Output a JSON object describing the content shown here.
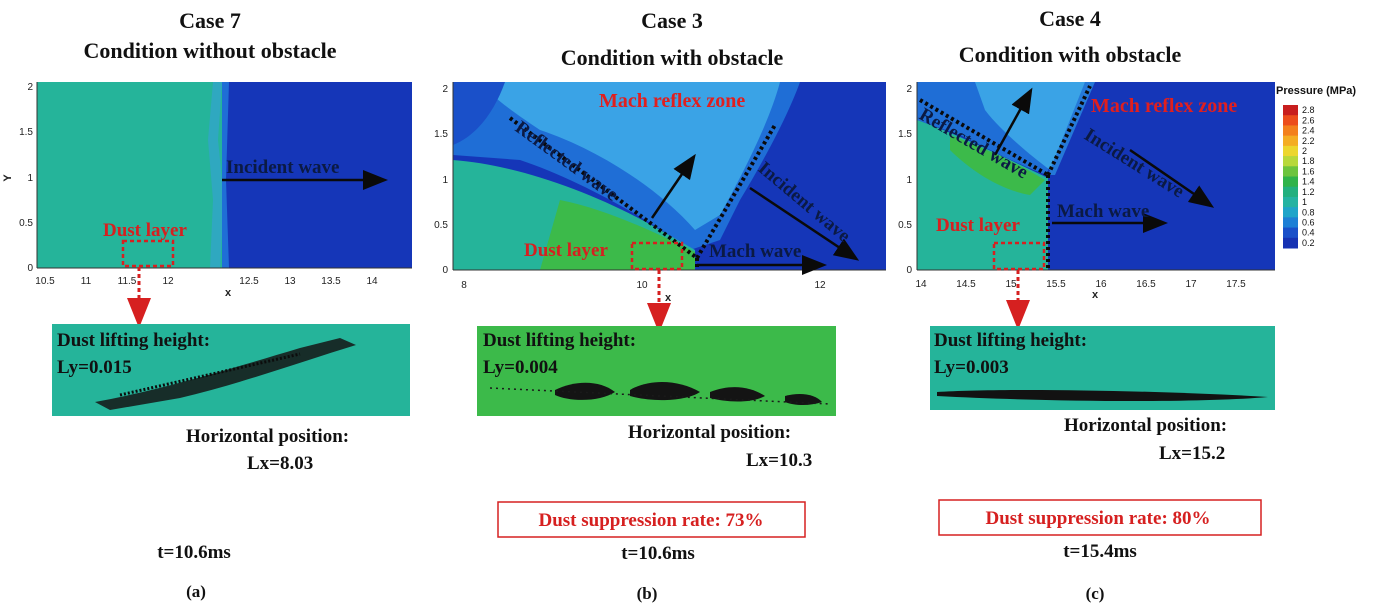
{
  "panels": [
    {
      "id": "a",
      "title_case": "Case 7",
      "title_condition": "Condition without  obstacle",
      "x_axis_label": "x",
      "y_axis_label": "Y",
      "x_ticks": [
        "10.5",
        "11",
        "11.5",
        "12",
        "12.5",
        "13",
        "13.5",
        "14"
      ],
      "y_ticks": [
        "0",
        "0.5",
        "1",
        "1.5",
        "2"
      ],
      "annotations": {
        "incident": "Incident wave",
        "dust_layer": "Dust layer"
      },
      "lift_label": "Dust lifting height:",
      "lift_value": "Ly=0.015",
      "position_label": "Horizontal position:",
      "position_value": "Lx=8.03",
      "time": "t=10.6ms",
      "panel_label": "(a)"
    },
    {
      "id": "b",
      "title_case": "Case 3",
      "title_condition": "Condition with obstacle",
      "x_axis_label": "x",
      "x_ticks": [
        "8",
        "10",
        "12"
      ],
      "y_ticks": [
        "0",
        "0.5",
        "1",
        "1.5",
        "2"
      ],
      "annotations": {
        "mach_reflex": "Mach reflex zone",
        "reflected": "Reflected wave",
        "incident": "Incident wave",
        "mach_wave": "Mach wave",
        "dust_layer": "Dust layer"
      },
      "lift_label": "Dust lifting height:",
      "lift_value": "Ly=0.004",
      "position_label": "Horizontal position:",
      "position_value": "Lx=10.3",
      "suppression": "Dust suppression rate:  73%",
      "time": "t=10.6ms",
      "panel_label": "(b)"
    },
    {
      "id": "c",
      "title_case": "Case 4",
      "title_condition": "Condition with obstacle",
      "x_axis_label": "x",
      "x_ticks": [
        "14",
        "14.5",
        "15",
        "15.5",
        "16",
        "16.5",
        "17",
        "17.5"
      ],
      "y_ticks": [
        "0",
        "0.5",
        "1",
        "1.5",
        "2"
      ],
      "annotations": {
        "mach_reflex": "Mach reflex zone",
        "reflected": "Reflected wave",
        "incident": "Incident wave",
        "mach_wave": "Mach wave",
        "dust_layer": "Dust layer"
      },
      "lift_label": "Dust lifting height:",
      "lift_value": "Ly=0.003",
      "position_label": "Horizontal position:",
      "position_value": "Lx=15.2",
      "suppression": "Dust suppression rate: 80%",
      "time": "t=15.4ms",
      "panel_label": "(c)"
    }
  ],
  "legend": {
    "title": "Pressure (MPa)",
    "ticks": [
      "2.8",
      "2.6",
      "2.4",
      "2.2",
      "2",
      "1.8",
      "1.6",
      "1.4",
      "1.2",
      "1",
      "0.8",
      "0.6",
      "0.4",
      "0.2"
    ],
    "colors": [
      "#c81e1e",
      "#ec4d1c",
      "#f3801d",
      "#f4ad24",
      "#ecd62e",
      "#b7d83b",
      "#6cc43e",
      "#2fb34a",
      "#22b07e",
      "#24b3a2",
      "#1fa4c9",
      "#1d7fd5",
      "#1a50c9",
      "#1632b3"
    ]
  },
  "colors": {
    "deep_blue": "#1536b8",
    "mid_blue": "#1f6ed6",
    "light_blue": "#3aa3e6",
    "teal": "#25b49a",
    "green": "#3cba4a",
    "annotation_red": "#d62020"
  }
}
